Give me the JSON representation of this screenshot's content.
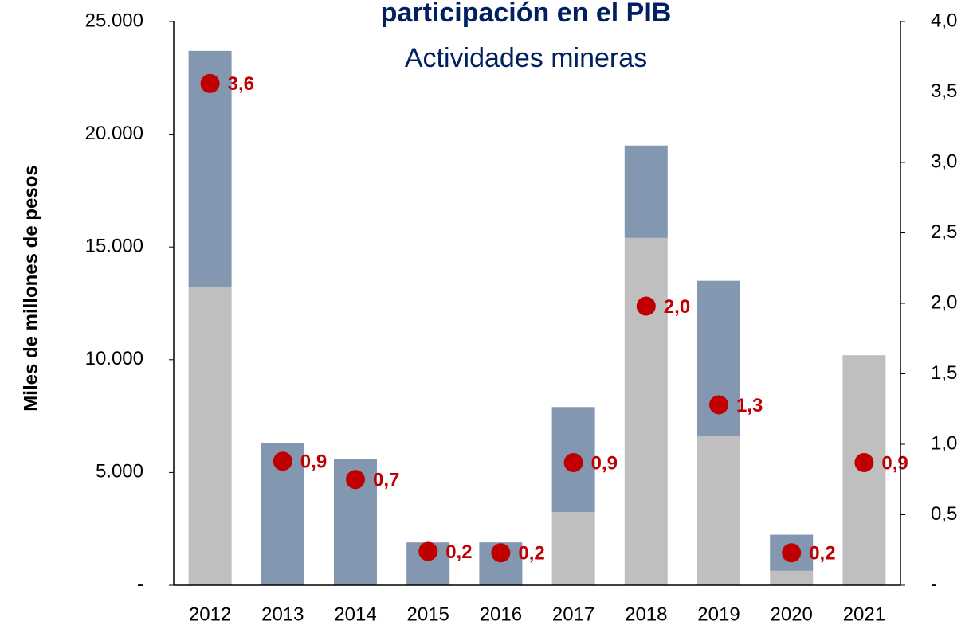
{
  "chart_data": {
    "type": "bar",
    "title": "participación en el PIB",
    "subtitle": "Actividades mineras",
    "ylabel": "Miles de millones de pesos",
    "categories": [
      "2012",
      "2013",
      "2014",
      "2015",
      "2016",
      "2017",
      "2018",
      "2019",
      "2020",
      "2021"
    ],
    "stacked": true,
    "series": [
      {
        "color": "#bfbfbf",
        "values": [
          13200,
          0,
          0,
          0,
          0,
          3250,
          15400,
          6600,
          640,
          10200
        ]
      },
      {
        "color": "#8497b0",
        "values": [
          10500,
          6300,
          5600,
          1900,
          1900,
          4650,
          4100,
          6900,
          1600,
          0
        ]
      },
      {
        "type": "scatter",
        "axis": "y2",
        "color": "#c00000",
        "values": [
          3.56,
          0.88,
          0.75,
          0.24,
          0.23,
          0.87,
          1.98,
          1.28,
          0.23,
          0.87
        ],
        "value_labels": [
          "3,6",
          "0,9",
          "0,7",
          "0,2",
          "0,2",
          "0,9",
          "2,0",
          "1,3",
          "0,2",
          "0,9"
        ]
      }
    ],
    "ylim": [
      0,
      25000
    ],
    "yticks": [
      {
        "value": 0,
        "label": "-"
      },
      {
        "value": 5000,
        "label": "5.000"
      },
      {
        "value": 10000,
        "label": "10.000"
      },
      {
        "value": 15000,
        "label": "15.000"
      },
      {
        "value": 20000,
        "label": "20.000"
      },
      {
        "value": 25000,
        "label": "25.000"
      }
    ],
    "y2lim": [
      0,
      4
    ],
    "y2ticks": [
      {
        "value": 0,
        "label": "-"
      },
      {
        "value": 0.5,
        "label": "0,5"
      },
      {
        "value": 1,
        "label": "1,0"
      },
      {
        "value": 1.5,
        "label": "1,5"
      },
      {
        "value": 2,
        "label": "2,0"
      },
      {
        "value": 2.5,
        "label": "2,5"
      },
      {
        "value": 3,
        "label": "3,0"
      },
      {
        "value": 3.5,
        "label": "3,5"
      },
      {
        "value": 4,
        "label": "4,0"
      }
    ],
    "grid": false
  }
}
